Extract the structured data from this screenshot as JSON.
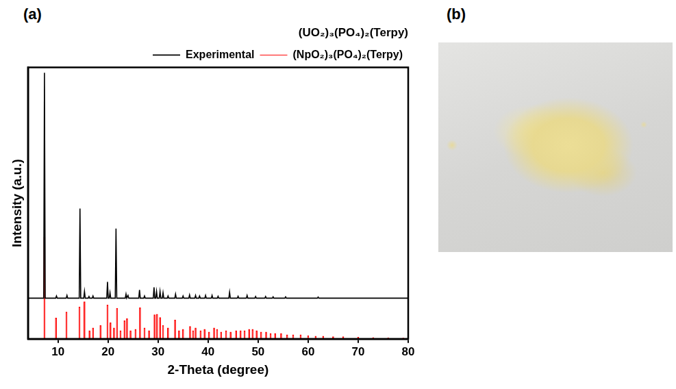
{
  "panel_labels": [
    "(a)",
    "(b)"
  ],
  "chart_data": {
    "type": "line",
    "title": "(UO₂)₃(PO₄)₂(Terpy)",
    "x_label": "2-Theta (degree)",
    "y_label": "Intensity (a.u.)",
    "xlim": [
      4,
      80
    ],
    "xticks": [
      10,
      20,
      30,
      40,
      50,
      60,
      70,
      80
    ],
    "ylim": [
      0,
      100
    ],
    "tick_labels": "x",
    "grid": false,
    "legend": "top",
    "series": [
      {
        "name": "Experimental",
        "color": "#000000",
        "type": "line",
        "x": [
          4,
          7.15,
          7.3,
          7.45,
          9.55,
          9.7,
          9.85,
          11.65,
          11.8,
          11.95,
          14.25,
          14.4,
          14.55,
          15.15,
          15.3,
          15.45,
          16.05,
          16.2,
          16.35,
          16.85,
          17.0,
          17.15,
          19.75,
          19.9,
          20.05,
          20.25,
          20.4,
          20.55,
          21.45,
          21.6,
          21.75,
          23.45,
          23.6,
          23.75,
          23.85,
          24.0,
          24.15,
          26.15,
          26.3,
          26.45,
          27.15,
          27.3,
          27.45,
          29.05,
          29.2,
          29.35,
          29.55,
          29.7,
          29.85,
          30.25,
          30.4,
          30.55,
          30.85,
          31.0,
          31.15,
          31.85,
          32.0,
          32.15,
          33.35,
          33.5,
          33.65,
          34.85,
          35.0,
          35.15,
          36.15,
          36.3,
          36.45,
          37.35,
          37.5,
          37.65,
          38.15,
          38.3,
          38.45,
          39.35,
          39.5,
          39.65,
          40.65,
          40.8,
          40.95,
          41.85,
          42.0,
          42.15,
          44.15,
          44.3,
          44.45,
          45.85,
          46.0,
          46.15,
          47.65,
          47.8,
          47.95,
          49.35,
          49.5,
          49.65,
          51.35,
          51.5,
          51.65,
          52.85,
          53.0,
          53.15,
          55.35,
          55.5,
          55.65,
          61.85,
          62.0,
          62.15,
          80
        ],
        "values": [
          15,
          15,
          98,
          15,
          15,
          15.8,
          15,
          15,
          16,
          15,
          15,
          48,
          15,
          15,
          17.5,
          15,
          15,
          15.6,
          15,
          15,
          15.8,
          15,
          15,
          21,
          15,
          15,
          17,
          15,
          15,
          40.6,
          15,
          15,
          16.5,
          15,
          15,
          16,
          15,
          15,
          18,
          15,
          15,
          15.8,
          15,
          15,
          19,
          15,
          15,
          17.5,
          15,
          15,
          17.5,
          15,
          15,
          17,
          15,
          15,
          15.8,
          15,
          15,
          16.5,
          15,
          15,
          15.8,
          15,
          15,
          16.2,
          15,
          15,
          16,
          15,
          15,
          15.8,
          15,
          15,
          16,
          15,
          15,
          16,
          15,
          15,
          15.7,
          15,
          15,
          17.2,
          15,
          15,
          15.7,
          15,
          15,
          16,
          15,
          15,
          15.6,
          15,
          15,
          15.6,
          15,
          15,
          15.5,
          15,
          15,
          15.5,
          15,
          15,
          15.4,
          15,
          15
        ]
      },
      {
        "name": "(NpO₂)₃(PO₄)₂(Terpy)",
        "color": "#ff0000",
        "type": "bar",
        "x": [
          7.3,
          9.6,
          11.7,
          14.3,
          15.3,
          16.3,
          17.0,
          18.5,
          19.9,
          20.5,
          21.2,
          21.8,
          22.5,
          23.3,
          23.8,
          24.5,
          25.5,
          26.4,
          27.3,
          28.2,
          29.3,
          29.8,
          30.4,
          31.0,
          32.0,
          33.4,
          34.2,
          35.0,
          36.4,
          37.0,
          37.5,
          38.5,
          39.3,
          40.2,
          41.2,
          41.8,
          42.6,
          43.6,
          44.5,
          45.6,
          46.5,
          47.3,
          48.2,
          48.9,
          49.7,
          50.6,
          51.6,
          52.5,
          53.4,
          54.6,
          55.8,
          57.0,
          58.5,
          60.0,
          61.5,
          63.0,
          65.0,
          67.0,
          70.0,
          73.0,
          76.0,
          79.0
        ],
        "values": [
          37.5,
          7.7,
          9.9,
          11.8,
          13.7,
          3,
          4,
          5,
          12.5,
          6,
          4,
          11.3,
          3,
          6.7,
          7.5,
          3,
          3.5,
          11.5,
          4,
          3,
          8.9,
          9.1,
          7.9,
          5,
          4,
          7,
          3,
          3.5,
          4.6,
          3,
          4,
          3,
          3.5,
          2.5,
          4,
          3.5,
          2.5,
          3,
          2.5,
          3,
          3,
          3,
          3.5,
          3.5,
          3,
          2.5,
          2.5,
          2,
          2,
          2,
          1.5,
          1.5,
          1.5,
          1.2,
          1,
          1,
          0.8,
          0.8,
          0.6,
          0.5,
          0.4,
          0.3
        ]
      }
    ]
  }
}
